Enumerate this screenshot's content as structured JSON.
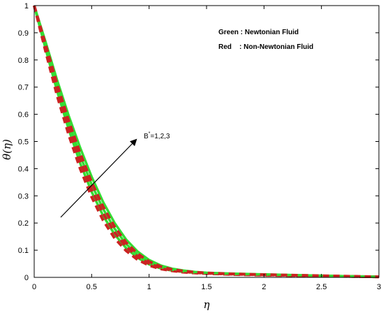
{
  "chart_data": {
    "type": "line",
    "xlabel": "η",
    "ylabel": "θ(η)",
    "xlim": [
      0,
      3
    ],
    "ylim": [
      0,
      1
    ],
    "x_ticks": [
      0,
      0.5,
      1,
      1.5,
      2,
      2.5,
      3
    ],
    "x_tick_labels": [
      "0",
      "0.5",
      "1",
      "1.5",
      "2",
      "2.5",
      "3"
    ],
    "y_ticks": [
      0,
      0.1,
      0.2,
      0.3,
      0.4,
      0.5,
      0.6,
      0.7,
      0.8,
      0.9,
      1
    ],
    "y_tick_labels": [
      "0",
      "0.1",
      "0.2",
      "0.3",
      "0.4",
      "0.5",
      "0.6",
      "0.7",
      "0.8",
      "0.9",
      "1"
    ],
    "grid": false,
    "legend_placement": "top-right",
    "legend": [
      {
        "label": "Green : Newtonian Fluid",
        "color": "#33dd33"
      },
      {
        "label": "Red    : Non-Newtonian Fluid",
        "color": "#cc2222"
      }
    ],
    "annotation": {
      "text": "=1,2,3",
      "symbol": "B",
      "superscript": "*"
    },
    "annotation_arrow": {
      "from": [
        0.22,
        0.22
      ],
      "to": [
        0.89,
        0.5
      ]
    },
    "x": [
      0,
      0.1,
      0.2,
      0.3,
      0.4,
      0.5,
      0.6,
      0.7,
      0.8,
      0.9,
      1.0,
      1.1,
      1.2,
      1.3,
      1.4,
      1.5,
      1.7,
      2.0,
      2.5,
      3.0
    ],
    "series": [
      {
        "color": "#33dd33",
        "style": "solid",
        "values": [
          1,
          0.84,
          0.685,
          0.545,
          0.42,
          0.315,
          0.227,
          0.158,
          0.108,
          0.072,
          0.048,
          0.033,
          0.025,
          0.02,
          0.017,
          0.015,
          0.012,
          0.009,
          0.005,
          0.002
        ]
      },
      {
        "color": "#cc2222",
        "style": "dashed",
        "values": [
          1,
          0.83,
          0.668,
          0.525,
          0.4,
          0.296,
          0.21,
          0.144,
          0.098,
          0.065,
          0.044,
          0.031,
          0.024,
          0.019,
          0.016,
          0.014,
          0.011,
          0.008,
          0.005,
          0.002
        ]
      },
      {
        "color": "#33dd33",
        "style": "solid",
        "values": [
          1,
          0.852,
          0.705,
          0.57,
          0.448,
          0.342,
          0.252,
          0.179,
          0.123,
          0.083,
          0.056,
          0.038,
          0.028,
          0.022,
          0.018,
          0.016,
          0.013,
          0.01,
          0.006,
          0.002
        ]
      },
      {
        "color": "#cc2222",
        "style": "dashed",
        "values": [
          1,
          0.842,
          0.688,
          0.55,
          0.428,
          0.323,
          0.235,
          0.165,
          0.113,
          0.076,
          0.051,
          0.035,
          0.026,
          0.021,
          0.017,
          0.015,
          0.012,
          0.009,
          0.005,
          0.002
        ]
      },
      {
        "color": "#33dd33",
        "style": "solid",
        "values": [
          1,
          0.865,
          0.725,
          0.595,
          0.477,
          0.37,
          0.277,
          0.2,
          0.139,
          0.095,
          0.064,
          0.044,
          0.032,
          0.025,
          0.02,
          0.017,
          0.014,
          0.011,
          0.006,
          0.002
        ]
      },
      {
        "color": "#cc2222",
        "style": "dashed",
        "values": [
          1,
          0.855,
          0.71,
          0.577,
          0.457,
          0.35,
          0.26,
          0.186,
          0.128,
          0.087,
          0.058,
          0.04,
          0.029,
          0.023,
          0.019,
          0.016,
          0.013,
          0.01,
          0.006,
          0.002
        ]
      }
    ]
  }
}
